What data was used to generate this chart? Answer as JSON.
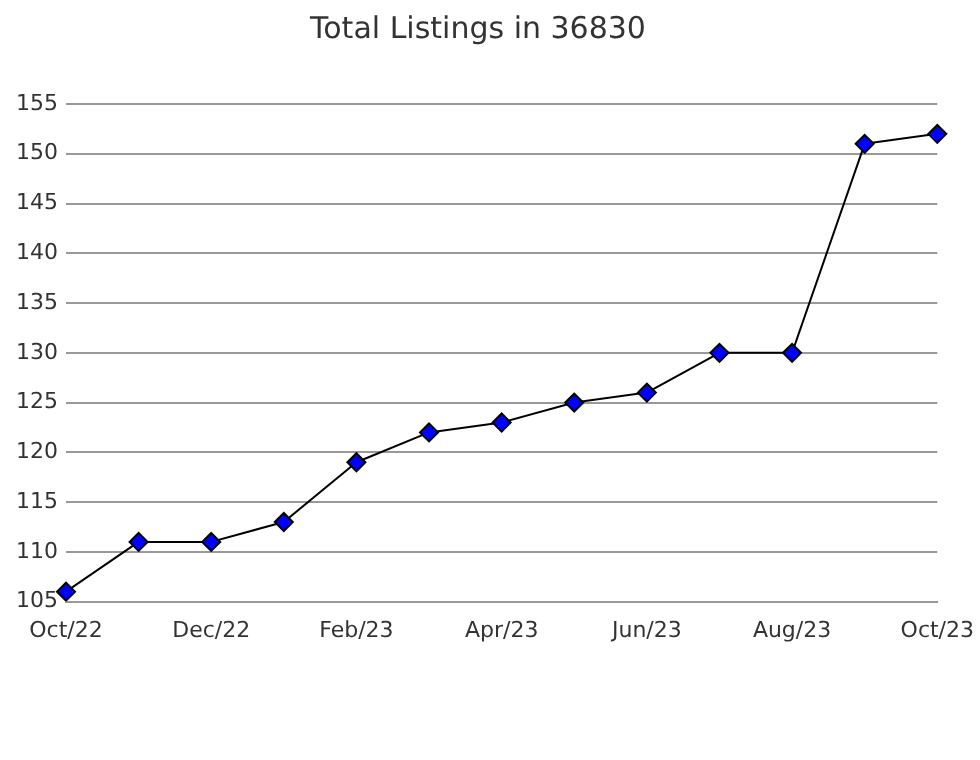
{
  "chart_data": {
    "type": "line",
    "title": "Total Listings in 36830",
    "categories": [
      "Oct/22",
      null,
      "Dec/22",
      null,
      "Feb/23",
      null,
      "Apr/23",
      null,
      "Jun/23",
      null,
      "Aug/23",
      null,
      "Oct/23"
    ],
    "series": [
      {
        "color": "#0000ff",
        "values": [
          106,
          111,
          111,
          113,
          119,
          122,
          123,
          125,
          126,
          130,
          130,
          151,
          152
        ]
      }
    ],
    "ylim": [
      105,
      155
    ],
    "yticks": [
      105,
      110,
      115,
      120,
      125,
      130,
      135,
      140,
      145,
      150,
      155
    ],
    "grid": "y",
    "legend": false,
    "marker": "diamond",
    "line_style": "solid"
  }
}
